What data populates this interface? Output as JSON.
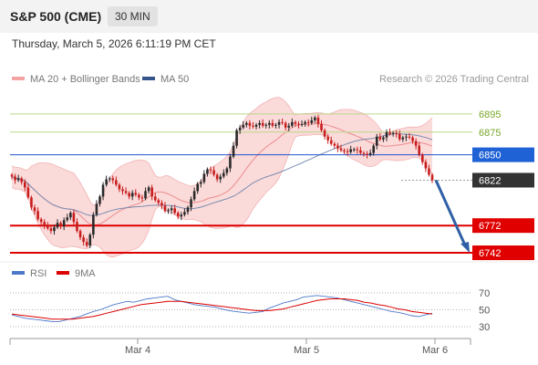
{
  "header": {
    "symbol": "S&P 500 (CME)",
    "timeframe": "30 MIN"
  },
  "timestamp": "Thursday, March 5, 2026 6:11:19 PM CET",
  "legend": {
    "bollinger": "MA 20 + Bollinger Bands",
    "ma50": "MA 50",
    "credit": "Research © 2026 Trading Central"
  },
  "rsi_legend": {
    "rsi": "RSI",
    "ma": "9MA"
  },
  "colors": {
    "bollinger": "#f4a3a3",
    "ma50": "#35558a",
    "support": "#dd0000",
    "pivot": "#2255cc",
    "resistance": "#7aa82a",
    "last": "#333333",
    "up": "#2a2a2a",
    "down": "#c81d1d",
    "arrow": "#2f5fa5"
  },
  "chart_data": [
    {
      "type": "candlestick",
      "y_range": [
        6735,
        6920
      ],
      "x_ticks": [
        "Mar 4",
        "Mar 5",
        "Mar 6"
      ],
      "level_lines": [
        {
          "label": "6895",
          "kind": "resistance"
        },
        {
          "label": "6875",
          "kind": "resistance"
        },
        {
          "label": "6850",
          "kind": "pivot"
        },
        {
          "label": "6822",
          "kind": "last"
        },
        {
          "label": "6772",
          "kind": "support"
        },
        {
          "label": "6742",
          "kind": "support"
        }
      ],
      "close": [
        6826,
        6822,
        6824,
        6820,
        6814,
        6803,
        6792,
        6788,
        6779,
        6776,
        6772,
        6769,
        6766,
        6770,
        6775,
        6771,
        6778,
        6781,
        6786,
        6776,
        6766,
        6759,
        6754,
        6750,
        6762,
        6784,
        6796,
        6804,
        6817,
        6823,
        6824,
        6822,
        6817,
        6812,
        6810,
        6808,
        6804,
        6808,
        6806,
        6803,
        6802,
        6810,
        6814,
        6804,
        6800,
        6797,
        6794,
        6788,
        6789,
        6791,
        6786,
        6782,
        6784,
        6787,
        6792,
        6801,
        6810,
        6818,
        6820,
        6829,
        6834,
        6833,
        6828,
        6823,
        6826,
        6830,
        6835,
        6848,
        6860,
        6877,
        6880,
        6883,
        6885,
        6882,
        6881,
        6883,
        6885,
        6882,
        6883,
        6885,
        6882,
        6883,
        6886,
        6885,
        6880,
        6882,
        6886,
        6884,
        6883,
        6884,
        6886,
        6885,
        6888,
        6891,
        6884,
        6877,
        6870,
        6866,
        6862,
        6860,
        6857,
        6855,
        6854,
        6853,
        6856,
        6856,
        6855,
        6852,
        6851,
        6850,
        6852,
        6860,
        6870,
        6867,
        6869,
        6875,
        6873,
        6874,
        6873,
        6867,
        6869,
        6870,
        6869,
        6865,
        6860,
        6850,
        6842,
        6835,
        6828,
        6822
      ]
    },
    {
      "type": "line",
      "title": "RSI",
      "y_ticks": [
        70,
        50,
        30
      ],
      "series": [
        {
          "name": "RSI",
          "values": [
            44,
            42,
            40,
            39,
            38,
            37,
            36,
            36,
            38,
            40,
            42,
            45,
            48,
            50,
            53,
            56,
            58,
            60,
            59,
            61,
            63,
            64,
            65,
            66,
            62,
            60,
            58,
            56,
            55,
            54,
            53,
            51,
            49,
            48,
            47,
            46,
            47,
            48,
            52,
            55,
            58,
            60,
            62,
            65,
            66,
            67,
            66,
            65,
            64,
            62,
            60,
            58,
            56,
            54,
            52,
            50,
            48,
            47,
            45,
            43,
            42,
            44,
            46
          ]
        },
        {
          "name": "9MA",
          "values": [
            45,
            44,
            43,
            42,
            41,
            40,
            39,
            39,
            39,
            39,
            40,
            41,
            42,
            44,
            46,
            48,
            50,
            52,
            54,
            56,
            57,
            58,
            59,
            60,
            60,
            60,
            59,
            58,
            57,
            56,
            55,
            54,
            53,
            52,
            51,
            50,
            49,
            49,
            49,
            50,
            51,
            53,
            55,
            57,
            59,
            61,
            62,
            63,
            63,
            63,
            62,
            61,
            59,
            58,
            56,
            55,
            53,
            51,
            50,
            48,
            47,
            46,
            45
          ]
        }
      ]
    }
  ]
}
